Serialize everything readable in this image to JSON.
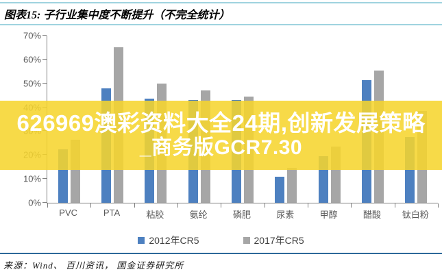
{
  "header": {
    "title": "图表15:  子行业集中度不断提升（不完全统计）"
  },
  "overlay": {
    "line1": "626969澳彩资料大全24期,创新发展策略",
    "line2": "_商务版GCR7.30",
    "bg_color": "#F6D52D",
    "text_color": "#FFFFFF"
  },
  "chart_data": {
    "type": "bar",
    "title": "子行业集中度不断提升（不完全统计）",
    "categories": [
      "PVC",
      "PTA",
      "粘胶",
      "氨纶",
      "磷肥",
      "尿素",
      "甲醇",
      "醋酸",
      "钛白粉"
    ],
    "series": [
      {
        "name": "2012年CR5",
        "color": "#4D80C0",
        "values": [
          22.5,
          48,
          43.5,
          43,
          43,
          11,
          19.5,
          51.5,
          27.5
        ]
      },
      {
        "name": "2017年CR5",
        "color": "#A6A6A6",
        "values": [
          26.5,
          65,
          50,
          47,
          44.5,
          14.5,
          23.5,
          55.5,
          38.5
        ]
      }
    ],
    "xlabel": "",
    "ylabel": "",
    "ylim": [
      0,
      70
    ],
    "yticks": [
      "0%",
      "10%",
      "20%",
      "30%",
      "40%",
      "50%",
      "60%",
      "70%"
    ],
    "grid": false,
    "legend_position": "bottom",
    "axis_color": "#7F7F7F",
    "tick_label_color": "#595959"
  },
  "footer": {
    "source": "来源：Wind、 百川资讯， 国金证券研究所"
  }
}
